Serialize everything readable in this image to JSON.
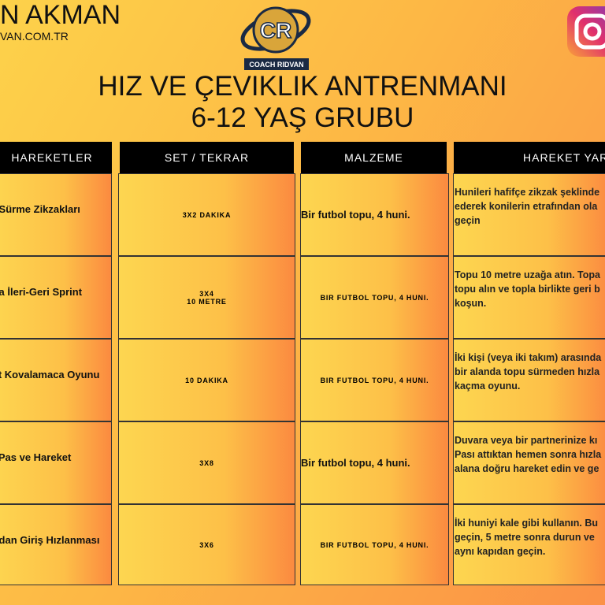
{
  "header": {
    "name": "N AKMAN",
    "website": "VAN.COM.TR",
    "logo": {
      "initials": "CR",
      "name": "COACH RIDVAN"
    }
  },
  "title": [
    "HIZ VE ÇEVIKLIK ANTRENMANI",
    "6-12 YAŞ GRUBU"
  ],
  "table": {
    "headers": [
      "HAREKETLER",
      "SET / TEKRAR",
      "MALZEME",
      "HAREKET YAR"
    ],
    "rows": [
      {
        "move": "o Sürme Zikzakları",
        "sets": [
          "3X2 DAKIKA"
        ],
        "equipment": "Bir futbol topu, 4 huni.",
        "description": [
          "Hunileri hafifçe zikzak şeklinde",
          "ederek konilerin etrafından ola",
          "geçin"
        ]
      },
      {
        "move": "pla İleri-Geri Sprint",
        "sets": [
          "3X4",
          "10 METRE"
        ],
        "equipment": "BIR FUTBOL TOPU, 4 HUNI.",
        "description": [
          "Topu 10 metre uzağa atın. Topa",
          "topu alın ve topla birlikte geri b",
          "koşun."
        ]
      },
      {
        "move": "sit Kovalamaca Oyunu",
        "sets": [
          "10 DAKIKA"
        ],
        "equipment": "BIR FUTBOL TOPU, 4 HUNI.",
        "description": [
          "İki kişi (veya iki takım) arasında",
          "bir alanda topu sürmeden hızla",
          "kaçma oyunu."
        ]
      },
      {
        "move": "a Pas ve Hareket",
        "sets": [
          "3X8"
        ],
        "equipment": "Bir futbol topu, 4 huni.",
        "description": [
          "Duvara veya bir partnerinize kı",
          "Pası attıktan hemen sonra hızla",
          "alana doğru hareket edin ve ge"
        ]
      },
      {
        "move": "pıdan Giriş Hızlanması",
        "sets": [
          "3X6"
        ],
        "equipment": "BIR FUTBOL TOPU, 4 HUNI.",
        "description": [
          "İki huniyi kale gibi kullanın. Bu",
          "geçin, 5 metre sonra durun ve",
          "aynı kapıdan geçin."
        ]
      }
    ]
  }
}
